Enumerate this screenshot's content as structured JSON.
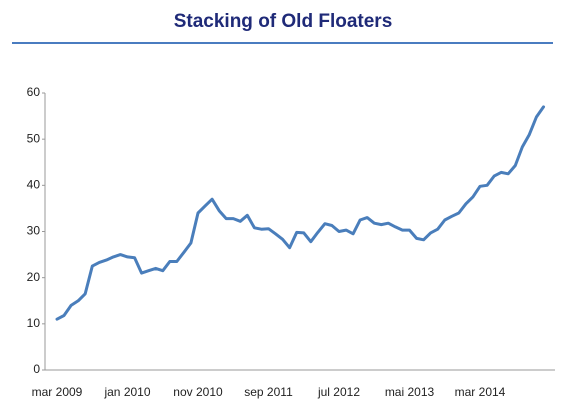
{
  "chart_data": {
    "type": "line",
    "title": "Stacking of Old Floaters",
    "categories": [
      "mar 2009",
      null,
      null,
      null,
      null,
      null,
      null,
      null,
      null,
      null,
      "jan 2010",
      null,
      null,
      null,
      null,
      null,
      null,
      null,
      null,
      null,
      "nov 2010",
      null,
      null,
      null,
      null,
      null,
      null,
      null,
      null,
      null,
      "sep 2011",
      null,
      null,
      null,
      null,
      null,
      null,
      null,
      null,
      null,
      "jul 2012",
      null,
      null,
      null,
      null,
      null,
      null,
      null,
      null,
      null,
      "mai 2013",
      null,
      null,
      null,
      null,
      null,
      null,
      null,
      null,
      null,
      "mar 2014",
      null,
      null,
      null,
      null,
      null,
      null,
      null,
      null,
      null
    ],
    "values": [
      11,
      11.8,
      14,
      15,
      16.5,
      22.5,
      23.3,
      23.8,
      24.5,
      25,
      24.5,
      24.3,
      21,
      21.5,
      22,
      21.5,
      23.5,
      23.5,
      25.5,
      27.5,
      34,
      35.5,
      37,
      34.5,
      32.8,
      32.8,
      32.2,
      33.5,
      30.8,
      30.5,
      30.6,
      29.5,
      28.3,
      26.5,
      29.8,
      29.7,
      27.8,
      29.8,
      31.7,
      31.3,
      30,
      30.3,
      29.5,
      32.5,
      33,
      31.8,
      31.5,
      31.8,
      31,
      30.3,
      30.3,
      28.5,
      28.2,
      29.7,
      30.5,
      32.5,
      33.3,
      34,
      36,
      37.5,
      39.8,
      40,
      42,
      42.8,
      42.5,
      44.3,
      48.3,
      51,
      54.8,
      57
    ],
    "color": "#4a7ebb",
    "ylim": [
      0,
      60
    ],
    "yticks": [
      0,
      10,
      20,
      30,
      40,
      50,
      60
    ],
    "grid": false
  }
}
